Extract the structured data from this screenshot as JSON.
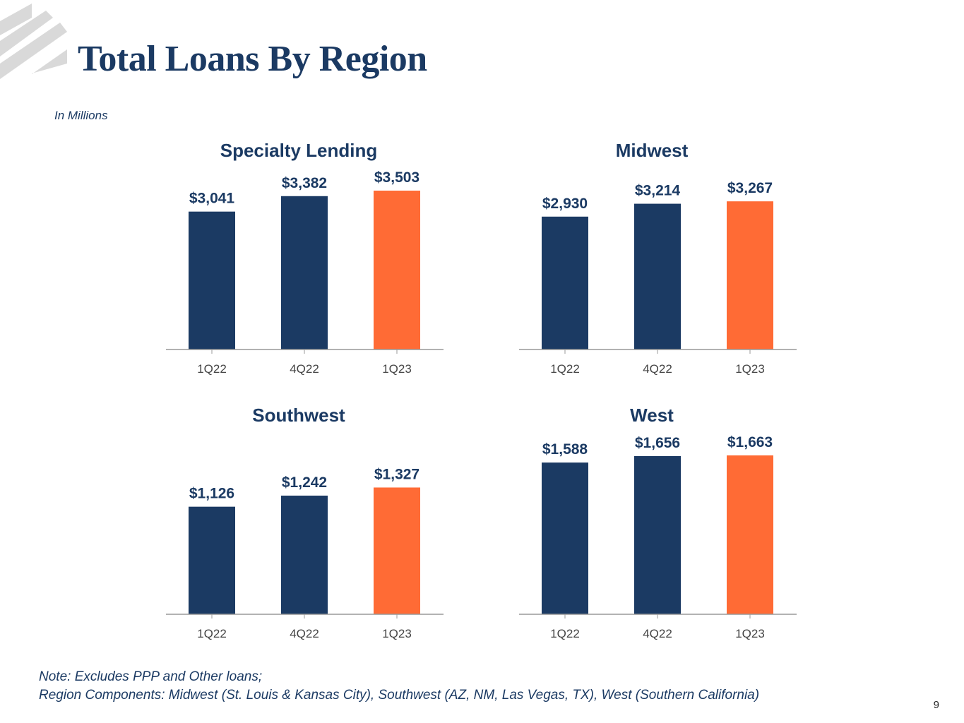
{
  "title": "Total Loans By Region",
  "subtitle": "In Millions",
  "note": {
    "line1": "Note: Excludes PPP and Other loans;",
    "line2": "Region Components: Midwest (St. Louis & Kansas City), Southwest (AZ, NM, Las Vegas, TX), West (Southern California)"
  },
  "page_number": "9",
  "colors": {
    "navy": "#1b3a63",
    "orange": "#ff6b35",
    "logo_gray": "#d9d9d9",
    "axis": "#999999"
  },
  "chart_data": [
    {
      "type": "bar",
      "title": "Specialty Lending",
      "categories": [
        "1Q22",
        "4Q22",
        "1Q23"
      ],
      "values": [
        3041,
        3382,
        3503
      ],
      "labels": [
        "$3,041",
        "$3,382",
        "$3,503"
      ],
      "ylim": [
        0,
        3503
      ],
      "highlight_index": 2,
      "xlabel": "",
      "ylabel": ""
    },
    {
      "type": "bar",
      "title": "Midwest",
      "categories": [
        "1Q22",
        "4Q22",
        "1Q23"
      ],
      "values": [
        2930,
        3214,
        3267
      ],
      "labels": [
        "$2,930",
        "$3,214",
        "$3,267"
      ],
      "ylim": [
        0,
        3503
      ],
      "highlight_index": 2,
      "xlabel": "",
      "ylabel": ""
    },
    {
      "type": "bar",
      "title": "Southwest",
      "categories": [
        "1Q22",
        "4Q22",
        "1Q23"
      ],
      "values": [
        1126,
        1242,
        1327
      ],
      "labels": [
        "$1,126",
        "$1,242",
        "$1,327"
      ],
      "ylim": [
        0,
        1663
      ],
      "highlight_index": 2,
      "xlabel": "",
      "ylabel": ""
    },
    {
      "type": "bar",
      "title": "West",
      "categories": [
        "1Q22",
        "4Q22",
        "1Q23"
      ],
      "values": [
        1588,
        1656,
        1663
      ],
      "labels": [
        "$1,588",
        "$1,656",
        "$1,663"
      ],
      "ylim": [
        0,
        1663
      ],
      "highlight_index": 2,
      "xlabel": "",
      "ylabel": ""
    }
  ]
}
